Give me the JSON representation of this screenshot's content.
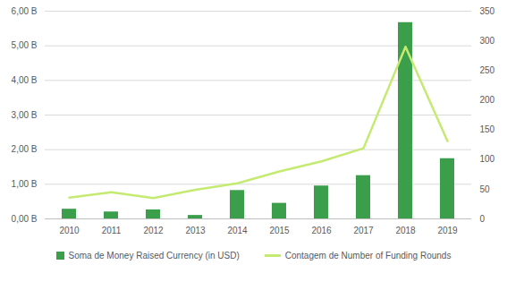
{
  "chart_data": {
    "type": "bar",
    "categories": [
      "2010",
      "2011",
      "2012",
      "2013",
      "2014",
      "2015",
      "2016",
      "2017",
      "2018",
      "2019"
    ],
    "series": [
      {
        "name": "Soma de Money Raised Currency (in USD)",
        "type": "bar",
        "color": "#3a9e4b",
        "values": [
          0.28,
          0.2,
          0.26,
          0.1,
          0.82,
          0.45,
          0.95,
          1.25,
          5.67,
          1.74
        ]
      },
      {
        "name": "Contagem de Number of Funding Rounds",
        "type": "line",
        "color": "#c5ea72",
        "axis": "y2",
        "values": [
          36,
          45,
          35,
          49,
          60,
          80,
          97,
          119,
          290,
          131
        ]
      }
    ],
    "ylim": [
      0,
      6
    ],
    "yticks": [
      {
        "value": 0,
        "label": "0,00 B"
      },
      {
        "value": 1,
        "label": "1,00 B"
      },
      {
        "value": 2,
        "label": "2,00 B"
      },
      {
        "value": 3,
        "label": "3,00 B"
      },
      {
        "value": 4,
        "label": "4,00 B"
      },
      {
        "value": 5,
        "label": "5,00 B"
      },
      {
        "value": 6,
        "label": "6,00 B"
      }
    ],
    "y2lim": [
      0,
      350
    ],
    "y2ticks": [
      0,
      50,
      100,
      150,
      200,
      250,
      300,
      350
    ],
    "grid": true,
    "legend": "bottom"
  }
}
